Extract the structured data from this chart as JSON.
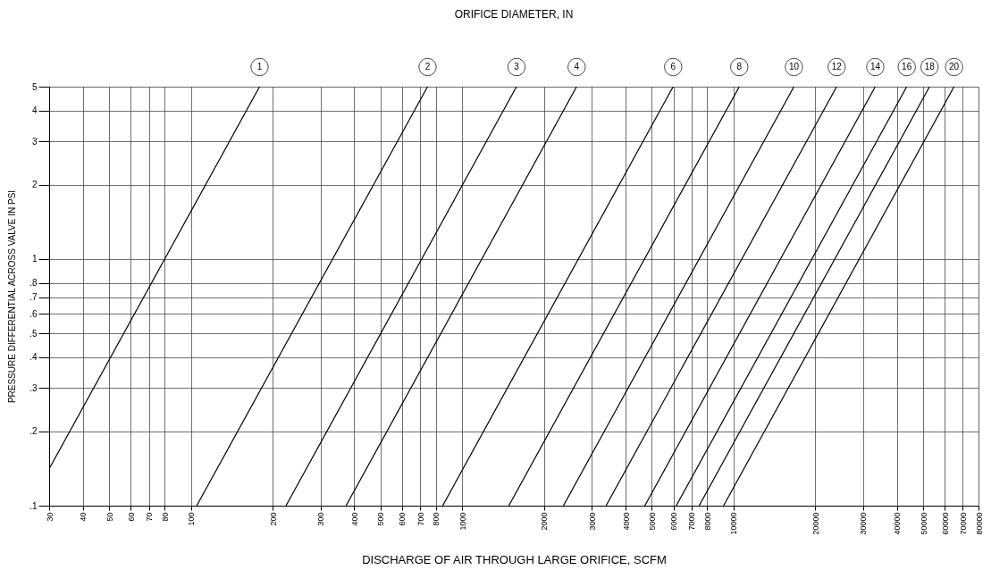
{
  "chart_data": {
    "type": "line",
    "title": "ORIFICE DIAMETER, IN",
    "xlabel": "DISCHARGE OF AIR THROUGH LARGE ORIFICE, SCFM",
    "ylabel": "PRESSURE DIFFERENTIAL ACROSS VALVE IN PSI",
    "log": "xy",
    "grid": true,
    "legend": "top",
    "marker": "none",
    "line_style": "solid",
    "xlim": [
      30,
      80000
    ],
    "ylim": [
      0.1,
      5
    ],
    "xticks": [
      30,
      40,
      50,
      60,
      70,
      80,
      100,
      200,
      300,
      400,
      500,
      600,
      700,
      800,
      1000,
      2000,
      3000,
      4000,
      5000,
      6000,
      7000,
      8000,
      10000,
      20000,
      30000,
      40000,
      50000,
      60000,
      70000,
      80000
    ],
    "yticks": [
      {
        "value": 0.1,
        "label": ".1"
      },
      {
        "value": 0.2,
        "label": ".2"
      },
      {
        "value": 0.3,
        "label": ".3"
      },
      {
        "value": 0.4,
        "label": ".4"
      },
      {
        "value": 0.5,
        "label": ".5"
      },
      {
        "value": 0.6,
        "label": ".6"
      },
      {
        "value": 0.7,
        "label": ".7"
      },
      {
        "value": 0.8,
        "label": ".8"
      },
      1,
      2,
      3,
      4,
      5
    ],
    "series": [
      {
        "name": "1",
        "color": "#000000",
        "x": [
          30,
          179
        ],
        "values": [
          0.141,
          5
        ]
      },
      {
        "name": "2",
        "color": "#000000",
        "x": [
          105,
          745
        ],
        "values": [
          0.1,
          5
        ]
      },
      {
        "name": "3",
        "color": "#000000",
        "x": [
          224,
          1585
        ],
        "values": [
          0.1,
          5
        ]
      },
      {
        "name": "4",
        "color": "#000000",
        "x": [
          373,
          2640
        ],
        "values": [
          0.1,
          5
        ]
      },
      {
        "name": "6",
        "color": "#000000",
        "x": [
          847,
          5990
        ],
        "values": [
          0.1,
          5
        ]
      },
      {
        "name": "8",
        "color": "#000000",
        "x": [
          1485,
          10500
        ],
        "values": [
          0.1,
          5
        ]
      },
      {
        "name": "10",
        "color": "#000000",
        "x": [
          2360,
          16700
        ],
        "values": [
          0.1,
          5
        ]
      },
      {
        "name": "12",
        "color": "#000000",
        "x": [
          3390,
          24000
        ],
        "values": [
          0.1,
          5
        ]
      },
      {
        "name": "14",
        "color": "#000000",
        "x": [
          4710,
          33300
        ],
        "values": [
          0.1,
          5
        ]
      },
      {
        "name": "16",
        "color": "#000000",
        "x": [
          6150,
          43500
        ],
        "values": [
          0.1,
          5
        ]
      },
      {
        "name": "18",
        "color": "#000000",
        "x": [
          7470,
          52800
        ],
        "values": [
          0.1,
          5
        ]
      },
      {
        "name": "20",
        "color": "#000000",
        "x": [
          9190,
          65000
        ],
        "values": [
          0.1,
          5
        ]
      }
    ]
  }
}
